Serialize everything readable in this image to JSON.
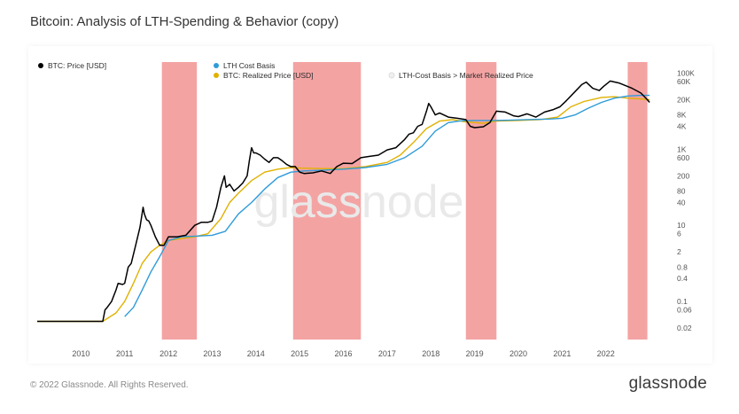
{
  "title": "Bitcoin: Analysis of LTH-Spending &  Behavior (copy)",
  "footer": "© 2022 Glassnode. All Rights Reserved.",
  "brand": "glassnode",
  "watermark": "glassnode",
  "colors": {
    "price": "#000000",
    "lth_cost_basis": "#2f9bd9",
    "realized_price": "#e0b100",
    "band": "#f4a3a3",
    "legend_faded": "#cfcfcf"
  },
  "legend": [
    {
      "label": "BTC: Price [USD]",
      "color": "#000000",
      "faded": false,
      "col": 0,
      "row": 1
    },
    {
      "label": "LTH Cost Basis",
      "color": "#2f9bd9",
      "faded": false,
      "col": 1,
      "row": 1
    },
    {
      "label": "BTC: Realized Price [USD]",
      "color": "#e0b100",
      "faded": false,
      "col": 1,
      "row": 2
    },
    {
      "label": "LTH-Cost Basis > Market Realized Price",
      "color": "#f0f0f0",
      "faded": false,
      "col": 2,
      "row": 2
    }
  ],
  "chart_data": {
    "type": "line",
    "y_scale": "log",
    "xlim": [
      2009.0,
      2023.1
    ],
    "ylim": [
      0.01,
      300000
    ],
    "x_ticks": [
      2010,
      2011,
      2012,
      2013,
      2014,
      2015,
      2016,
      2017,
      2018,
      2019,
      2020,
      2021,
      2022
    ],
    "y_ticks": [
      {
        "label": "100K",
        "value": 100000
      },
      {
        "label": "60K",
        "value": 60000
      },
      {
        "label": "20K",
        "value": 20000
      },
      {
        "label": "8K",
        "value": 8000
      },
      {
        "label": "4K",
        "value": 4000
      },
      {
        "label": "1K",
        "value": 1000
      },
      {
        "label": "600",
        "value": 600
      },
      {
        "label": "200",
        "value": 200
      },
      {
        "label": "80",
        "value": 80
      },
      {
        "label": "40",
        "value": 40
      },
      {
        "label": "10",
        "value": 10
      },
      {
        "label": "6",
        "value": 6
      },
      {
        "label": "2",
        "value": 2
      },
      {
        "label": "0.8",
        "value": 0.8
      },
      {
        "label": "0.4",
        "value": 0.4
      },
      {
        "label": "0.1",
        "value": 0.1
      },
      {
        "label": "0.06",
        "value": 0.06
      },
      {
        "label": "0.02",
        "value": 0.02
      }
    ],
    "grid": false,
    "shaded_periods": [
      {
        "start": 2011.85,
        "end": 2012.65
      },
      {
        "start": 2014.85,
        "end": 2016.4
      },
      {
        "start": 2018.8,
        "end": 2019.5
      },
      {
        "start": 2022.5,
        "end": 2022.95
      }
    ],
    "series": [
      {
        "name": "BTC: Price [USD]",
        "color": "#000000",
        "x": [
          2009.0,
          2010.5,
          2010.55,
          2010.6,
          2010.7,
          2010.8,
          2010.85,
          2010.95,
          2011.0,
          2011.08,
          2011.15,
          2011.25,
          2011.35,
          2011.42,
          2011.45,
          2011.5,
          2011.55,
          2011.6,
          2011.7,
          2011.8,
          2011.9,
          2012.0,
          2012.2,
          2012.4,
          2012.6,
          2012.75,
          2012.9,
          2013.0,
          2013.1,
          2013.2,
          2013.28,
          2013.32,
          2013.4,
          2013.5,
          2013.6,
          2013.7,
          2013.8,
          2013.85,
          2013.9,
          2013.95,
          2014.0,
          2014.1,
          2014.2,
          2014.3,
          2014.4,
          2014.5,
          2014.6,
          2014.7,
          2014.8,
          2014.9,
          2015.0,
          2015.1,
          2015.3,
          2015.5,
          2015.7,
          2015.85,
          2016.0,
          2016.2,
          2016.4,
          2016.6,
          2016.8,
          2017.0,
          2017.2,
          2017.4,
          2017.5,
          2017.6,
          2017.7,
          2017.8,
          2017.9,
          2017.95,
          2018.0,
          2018.1,
          2018.2,
          2018.4,
          2018.6,
          2018.8,
          2018.9,
          2019.0,
          2019.2,
          2019.35,
          2019.5,
          2019.7,
          2019.9,
          2020.0,
          2020.2,
          2020.4,
          2020.6,
          2020.8,
          2020.95,
          2021.1,
          2021.3,
          2021.45,
          2021.55,
          2021.7,
          2021.85,
          2021.95,
          2022.1,
          2022.3,
          2022.45,
          2022.6,
          2022.8,
          2022.95
        ],
        "y": [
          0.03,
          0.03,
          0.06,
          0.07,
          0.1,
          0.2,
          0.3,
          0.28,
          0.3,
          0.8,
          1.0,
          3.0,
          9.0,
          30.0,
          20.0,
          14.0,
          13.0,
          10.0,
          5.0,
          3.0,
          3.0,
          5.0,
          5.0,
          5.5,
          10.0,
          12.0,
          12.0,
          13.0,
          30.0,
          100.0,
          200.0,
          100.0,
          120.0,
          80.0,
          100.0,
          130.0,
          200.0,
          500.0,
          1100.0,
          800.0,
          800.0,
          700.0,
          550.0,
          450.0,
          600.0,
          600.0,
          500.0,
          400.0,
          350.0,
          350.0,
          250.0,
          230.0,
          240.0,
          270.0,
          230.0,
          350.0,
          430.0,
          420.0,
          600.0,
          650.0,
          700.0,
          960.0,
          1100.0,
          1800.0,
          2500.0,
          2700.0,
          4000.0,
          4500.0,
          10000.0,
          16000.0,
          13000.0,
          8000.0,
          9000.0,
          7000.0,
          6500.0,
          6000.0,
          4000.0,
          3700.0,
          3900.0,
          5000.0,
          10000.0,
          9500.0,
          7500.0,
          7200.0,
          8500.0,
          7000.0,
          9500.0,
          11000.0,
          13000.0,
          19000.0,
          33000.0,
          50000.0,
          58000.0,
          40000.0,
          35000.0,
          45000.0,
          62000.0,
          55000.0,
          47000.0,
          40000.0,
          30000.0,
          20000.0
        ],
        "y_tail": [
          17000.0
        ]
      },
      {
        "name": "LTH Cost Basis",
        "color": "#2f9bd9",
        "x": [
          2011.0,
          2011.2,
          2011.4,
          2011.6,
          2011.8,
          2012.0,
          2012.3,
          2012.6,
          2013.0,
          2013.3,
          2013.6,
          2013.9,
          2014.2,
          2014.5,
          2014.8,
          2015.1,
          2015.5,
          2016.0,
          2016.5,
          2017.0,
          2017.4,
          2017.8,
          2018.1,
          2018.4,
          2018.7,
          2019.0,
          2019.4,
          2019.8,
          2020.2,
          2020.7,
          2021.0,
          2021.3,
          2021.6,
          2021.9,
          2022.2,
          2022.5,
          2022.8,
          2023.0
        ],
        "y": [
          0.04,
          0.07,
          0.2,
          0.6,
          1.5,
          4.0,
          5.0,
          5.2,
          5.5,
          7.0,
          20.0,
          40.0,
          90.0,
          180.0,
          250.0,
          270.0,
          280.0,
          300.0,
          330.0,
          400.0,
          600.0,
          1200.0,
          3000.0,
          5000.0,
          5600.0,
          5700.0,
          5700.0,
          5800.0,
          6000.0,
          6200.0,
          6500.0,
          8000.0,
          12000.0,
          17000.0,
          22000.0,
          25000.0,
          26000.0,
          26000.0
        ]
      },
      {
        "name": "BTC: Realized Price [USD]",
        "color": "#e0b100",
        "x": [
          2009.0,
          2010.5,
          2010.8,
          2011.0,
          2011.2,
          2011.4,
          2011.6,
          2011.8,
          2012.0,
          2012.3,
          2012.6,
          2012.9,
          2013.2,
          2013.4,
          2013.6,
          2013.9,
          2014.2,
          2014.5,
          2014.8,
          2015.0,
          2015.5,
          2016.0,
          2016.5,
          2017.0,
          2017.3,
          2017.6,
          2017.9,
          2018.2,
          2018.5,
          2018.8,
          2019.2,
          2019.5,
          2020.0,
          2020.5,
          2020.9,
          2021.2,
          2021.5,
          2021.9,
          2022.2,
          2022.5,
          2022.8,
          2023.0
        ],
        "y": [
          0.03,
          0.03,
          0.05,
          0.1,
          0.3,
          1.0,
          2.0,
          3.0,
          4.0,
          4.5,
          5.0,
          6.0,
          15.0,
          40.0,
          70.0,
          150.0,
          250.0,
          300.0,
          330.0,
          320.0,
          310.0,
          310.0,
          350.0,
          450.0,
          700.0,
          1500.0,
          3500.0,
          5500.0,
          6000.0,
          5200.0,
          4800.0,
          5500.0,
          5700.0,
          6000.0,
          7000.0,
          13000.0,
          18000.0,
          23000.0,
          24000.0,
          22000.0,
          21000.0,
          20000.0
        ]
      }
    ]
  }
}
